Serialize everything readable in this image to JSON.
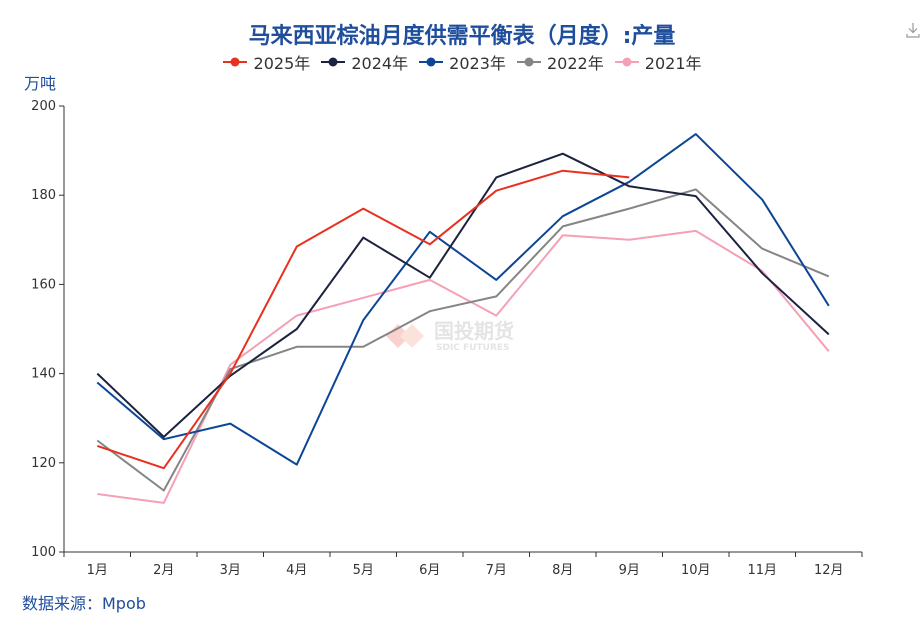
{
  "chart_data": {
    "type": "line",
    "title": "马来西亚棕油月度供需平衡表（月度）:产量",
    "ylabel": "万吨",
    "ylim": [
      100,
      200
    ],
    "yticks": [
      100,
      120,
      140,
      160,
      180,
      200
    ],
    "categories": [
      "1月",
      "2月",
      "3月",
      "4月",
      "5月",
      "6月",
      "7月",
      "8月",
      "9月",
      "10月",
      "11月",
      "12月"
    ],
    "grid": false,
    "legend_position": "top",
    "series": [
      {
        "name": "2025年",
        "color": "#e8311f",
        "values": [
          123.8,
          118.8,
          140.0,
          168.5,
          177.0,
          169.0,
          181.0,
          185.5,
          184.0,
          null,
          null,
          null
        ]
      },
      {
        "name": "2024年",
        "color": "#1c2340",
        "values": [
          140.0,
          125.8,
          139.5,
          150.0,
          170.5,
          161.5,
          184.0,
          189.3,
          182.0,
          179.8,
          162.5,
          148.8
        ]
      },
      {
        "name": "2023年",
        "color": "#0d4696",
        "values": [
          138.0,
          125.3,
          128.8,
          119.6,
          152.0,
          171.8,
          161.0,
          175.3,
          183.0,
          193.7,
          179.0,
          155.2
        ]
      },
      {
        "name": "2022年",
        "color": "#858585",
        "values": [
          125.0,
          113.8,
          141.0,
          146.0,
          146.0,
          154.0,
          157.3,
          173.0,
          177.0,
          181.3,
          168.0,
          161.8
        ]
      },
      {
        "name": "2021年",
        "color": "#f5a0b5",
        "values": [
          113.0,
          111.0,
          142.0,
          153.0,
          157.0,
          161.0,
          153.0,
          171.0,
          170.0,
          172.0,
          163.0,
          145.0
        ]
      }
    ]
  },
  "y_unit_label": "万吨",
  "source_note": "数据来源：Mpob",
  "watermark": {
    "text_cn": "国投期货",
    "text_en": "SDIC FUTURES"
  },
  "download_icon": "download-icon"
}
